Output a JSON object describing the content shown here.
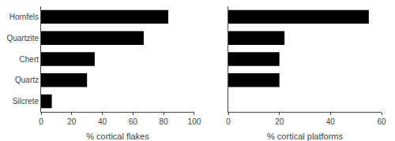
{
  "chart_data": [
    {
      "type": "bar",
      "orientation": "horizontal",
      "categories": [
        "Hornfels",
        "Quartzite",
        "Chert",
        "Quartz",
        "Silcrete"
      ],
      "values": [
        83,
        67,
        35,
        30,
        7
      ],
      "color": "#000000",
      "xlabel": "% cortical flakes",
      "xlim": [
        0,
        100
      ],
      "xticks": [
        0,
        20,
        40,
        60,
        80,
        100
      ],
      "grid": false
    },
    {
      "type": "bar",
      "orientation": "horizontal",
      "categories": [
        "Hornfels",
        "Quartzite",
        "Chert",
        "Quartz",
        "Silcrete"
      ],
      "values": [
        55,
        22,
        20,
        20,
        0
      ],
      "color": "#000000",
      "xlabel": "% cortical platforms",
      "xlim": [
        0,
        60
      ],
      "xticks": [
        0,
        20,
        40,
        60
      ],
      "grid": false,
      "tick_labels": "x"
    }
  ]
}
